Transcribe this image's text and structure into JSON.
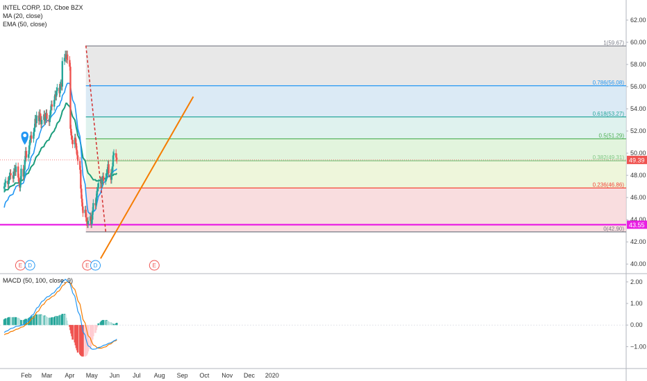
{
  "legend": {
    "symbol": "INTEL CORP, 1D, Cboe BZX",
    "ma": "MA (20, close)",
    "ema": "EMA (50, close)"
  },
  "macd_legend": "MACD (50, 100, close, 9)",
  "price_tag": {
    "value": "49.39",
    "color": "#ef5350"
  },
  "level_tag": {
    "value": "43.55",
    "color": "#e91ee3"
  },
  "colors": {
    "candle_up": "#26a69a",
    "candle_down": "#ef5350",
    "ma": "#2196f3",
    "ema": "#1b9d7c",
    "trend": "#f57c00",
    "macd": "#2196f3",
    "signal": "#f57c00"
  },
  "event_markers": [
    {
      "label": "E",
      "type": "earnings",
      "date": "2019-01-24"
    },
    {
      "label": "D",
      "type": "dividend",
      "date": "2019-02-06"
    },
    {
      "label": "E",
      "type": "earnings",
      "date": "2019-04-25"
    },
    {
      "label": "D",
      "type": "dividend",
      "date": "2019-05-06"
    },
    {
      "label": "E",
      "type": "earnings",
      "date": "2019-07-25"
    }
  ],
  "chart_data": [
    {
      "type": "candlestick",
      "title": "INTEL CORP, 1D, Cboe BZX",
      "x_ticks": [
        "Feb",
        "Mar",
        "Apr",
        "May",
        "Jun",
        "Jul",
        "Aug",
        "Sep",
        "Oct",
        "Nov",
        "Dec",
        "2020"
      ],
      "y_ticks": [
        "40.00",
        "42.00",
        "44.00",
        "46.00",
        "48.00",
        "50.00",
        "52.00",
        "54.00",
        "56.00",
        "58.00",
        "60.00",
        "62.00"
      ],
      "ylim": [
        39.2,
        63.5
      ],
      "grid": false,
      "fibonacci": [
        {
          "label": "1(59.67)",
          "price": 59.67,
          "color": "#787b86",
          "fill": "#e0e0e0"
        },
        {
          "label": "0.786(56.08)",
          "price": 56.08,
          "color": "#2196f3",
          "fill": "#cfe3f2"
        },
        {
          "label": "0.618(53.27)",
          "price": 53.27,
          "color": "#26a69a",
          "fill": "#d4eee8"
        },
        {
          "label": "0.5(51.29)",
          "price": 51.29,
          "color": "#4caf50",
          "fill": "#d8f0d2"
        },
        {
          "label": "0.382(49.31)",
          "price": 49.31,
          "color": "#81c784",
          "fill": "#e8f3cf"
        },
        {
          "label": "0.236(46.86)",
          "price": 46.86,
          "color": "#f44336",
          "fill": "#f7d2d4"
        },
        {
          "label": "0(42.90)",
          "price": 42.9,
          "color": "#787b86",
          "fill": "#f7d2d4"
        }
      ],
      "horizontal_level": 43.55,
      "last_price": 49.39,
      "closes": [
        47.0,
        47.3,
        47.5,
        47.2,
        47.6,
        47.9,
        48.2,
        48.0,
        47.7,
        48.3,
        48.6,
        48.3,
        48.8,
        47.8,
        47.4,
        46.9,
        47.6,
        48.6,
        47.9,
        48.5,
        49.4,
        50.2,
        49.6,
        49.9,
        50.7,
        51.2,
        51.6,
        51.3,
        51.9,
        52.3,
        53.1,
        52.7,
        53.4,
        52.9,
        53.6,
        53.2,
        52.6,
        53.0,
        53.5,
        52.9,
        53.3,
        53.6,
        53.1,
        52.8,
        53.4,
        53.9,
        54.4,
        54.2,
        54.8,
        55.3,
        55.1,
        55.6,
        55.9,
        55.4,
        56.1,
        56.3,
        56.0,
        58.3,
        58.6,
        58.9,
        58.5,
        58.9,
        58.4,
        57.8,
        52.2,
        51.6,
        51.2,
        50.8,
        51.4,
        50.9,
        50.3,
        49.8,
        49.3,
        48.5,
        46.8,
        45.9,
        45.2,
        44.6,
        44.9,
        44.2,
        43.8,
        43.6,
        43.9,
        44.3,
        43.6,
        44.0,
        44.8,
        45.5,
        45.3,
        46.0,
        46.6,
        46.9,
        47.3,
        47.5,
        47.2,
        47.6,
        47.9,
        47.5,
        47.8,
        48.2,
        48.4,
        49.0,
        48.2,
        47.6,
        48.3,
        48.8,
        49.8,
        50.0,
        49.6,
        49.39
      ],
      "ma20": [
        45.1,
        45.4,
        45.6,
        45.8,
        46.0,
        46.1,
        46.2,
        46.2,
        46.3,
        46.5,
        46.7,
        46.8,
        47.0,
        47.1,
        47.1,
        47.0,
        47.0,
        47.2,
        47.3,
        47.5,
        47.8,
        48.1,
        48.4,
        48.6,
        48.9,
        49.2,
        49.5,
        49.7,
        50.0,
        50.3,
        50.6,
        50.9,
        51.2,
        51.4,
        51.7,
        51.9,
        52.1,
        52.3,
        52.5,
        52.6,
        52.7,
        52.8,
        52.9,
        53.0,
        53.1,
        53.2,
        53.3,
        53.4,
        53.6,
        53.7,
        53.9,
        54.0,
        54.2,
        54.3,
        54.5,
        54.7,
        54.8,
        55.2,
        55.5,
        55.8,
        56.0,
        56.2,
        56.3,
        56.3,
        56.0,
        55.6,
        55.2,
        54.8,
        54.4,
        53.9,
        53.4,
        52.8,
        52.2,
        51.5,
        50.7,
        49.8,
        48.9,
        48.0,
        47.2,
        46.4,
        45.7,
        45.1,
        44.7,
        44.5,
        44.4,
        44.4,
        44.5,
        44.7,
        44.9,
        45.2,
        45.5,
        45.8,
        46.1,
        46.4,
        46.7,
        46.9,
        47.1,
        47.3,
        47.5,
        47.6,
        47.8,
        47.9,
        48.0,
        48.0,
        48.1,
        48.2,
        48.3,
        48.4,
        48.5,
        48.6
      ],
      "ema50": [
        46.5,
        46.6,
        46.7,
        46.7,
        46.8,
        46.9,
        47.0,
        47.0,
        47.1,
        47.1,
        47.2,
        47.3,
        47.3,
        47.3,
        47.4,
        47.4,
        47.5,
        47.5,
        47.6,
        47.7,
        47.8,
        48.0,
        48.1,
        48.2,
        48.4,
        48.5,
        48.7,
        48.8,
        49.0,
        49.2,
        49.4,
        49.6,
        49.7,
        49.9,
        50.1,
        50.2,
        50.4,
        50.5,
        50.6,
        50.8,
        50.9,
        51.0,
        51.1,
        51.2,
        51.4,
        51.5,
        51.7,
        51.8,
        52.0,
        52.2,
        52.3,
        52.5,
        52.7,
        52.9,
        53.1,
        53.3,
        53.5,
        53.8,
        54.1,
        54.3,
        54.5,
        54.5,
        54.4,
        54.2,
        54.0,
        53.8,
        53.5,
        53.3,
        53.0,
        52.7,
        52.3,
        52.0,
        51.6,
        51.2,
        50.8,
        50.4,
        50.0,
        49.6,
        49.3,
        49.0,
        48.7,
        48.4,
        48.2,
        48.0,
        47.9,
        47.8,
        47.7,
        47.6,
        47.6,
        47.5,
        47.5,
        47.5,
        47.5,
        47.6,
        47.6,
        47.6,
        47.7,
        47.7,
        47.7,
        47.8,
        47.8,
        47.9,
        47.9,
        47.9,
        47.9,
        48.0,
        48.0,
        48.1,
        48.1,
        48.2
      ],
      "trend_line": {
        "from": [
          "2019-05-13",
          40.5
        ],
        "to": [
          "2019-09-16",
          55.1
        ]
      }
    },
    {
      "type": "macd",
      "title": "MACD (50, 100, close, 9)",
      "y_ticks": [
        "2.00",
        "1.00",
        "0.00",
        "−1.00"
      ],
      "ylim": [
        -1.95,
        2.35
      ],
      "macd": [
        -0.35,
        -0.32,
        -0.29,
        -0.26,
        -0.23,
        -0.2,
        -0.18,
        -0.16,
        -0.14,
        -0.12,
        -0.1,
        -0.08,
        -0.06,
        -0.05,
        -0.04,
        -0.04,
        -0.03,
        -0.01,
        0.01,
        0.04,
        0.08,
        0.12,
        0.16,
        0.21,
        0.26,
        0.32,
        0.38,
        0.44,
        0.5,
        0.57,
        0.64,
        0.71,
        0.78,
        0.85,
        0.92,
        0.98,
        1.04,
        1.09,
        1.14,
        1.19,
        1.23,
        1.27,
        1.3,
        1.33,
        1.36,
        1.39,
        1.42,
        1.46,
        1.5,
        1.55,
        1.6,
        1.65,
        1.7,
        1.76,
        1.82,
        1.88,
        1.94,
        2.02,
        2.08,
        2.12,
        2.1,
        2.07,
        2.02,
        1.95,
        1.86,
        1.75,
        1.63,
        1.49,
        1.34,
        1.18,
        1.01,
        0.83,
        0.64,
        0.45,
        0.26,
        0.07,
        -0.12,
        -0.3,
        -0.47,
        -0.62,
        -0.76,
        -0.87,
        -0.96,
        -1.03,
        -1.08,
        -1.11,
        -1.12,
        -1.12,
        -1.11,
        -1.1,
        -1.08,
        -1.06,
        -1.04,
        -1.02,
        -1.0,
        -0.98,
        -0.96,
        -0.94,
        -0.92,
        -0.9,
        -0.88,
        -0.86,
        -0.84,
        -0.82,
        -0.8,
        -0.78,
        -0.76,
        -0.73,
        -0.69,
        -0.65
      ],
      "signal": [
        -0.45,
        -0.43,
        -0.41,
        -0.39,
        -0.37,
        -0.34,
        -0.32,
        -0.3,
        -0.28,
        -0.26,
        -0.24,
        -0.22,
        -0.2,
        -0.18,
        -0.16,
        -0.14,
        -0.12,
        -0.1,
        -0.08,
        -0.05,
        -0.02,
        0.01,
        0.05,
        0.09,
        0.13,
        0.18,
        0.23,
        0.28,
        0.34,
        0.4,
        0.46,
        0.53,
        0.59,
        0.66,
        0.73,
        0.79,
        0.85,
        0.91,
        0.97,
        1.02,
        1.07,
        1.12,
        1.16,
        1.2,
        1.23,
        1.26,
        1.29,
        1.32,
        1.36,
        1.4,
        1.44,
        1.49,
        1.54,
        1.59,
        1.64,
        1.7,
        1.76,
        1.82,
        1.88,
        1.93,
        1.97,
        1.99,
        2.0,
        1.98,
        1.95,
        1.9,
        1.83,
        1.75,
        1.65,
        1.54,
        1.42,
        1.28,
        1.13,
        0.97,
        0.8,
        0.62,
        0.44,
        0.26,
        0.09,
        -0.07,
        -0.22,
        -0.36,
        -0.49,
        -0.6,
        -0.7,
        -0.79,
        -0.86,
        -0.92,
        -0.97,
        -1.01,
        -1.04,
        -1.06,
        -1.07,
        -1.07,
        -1.07,
        -1.06,
        -1.05,
        -1.03,
        -1.01,
        -0.99,
        -0.96,
        -0.93,
        -0.9,
        -0.87,
        -0.84,
        -0.81,
        -0.78,
        -0.75,
        -0.72,
        -0.69
      ]
    }
  ]
}
